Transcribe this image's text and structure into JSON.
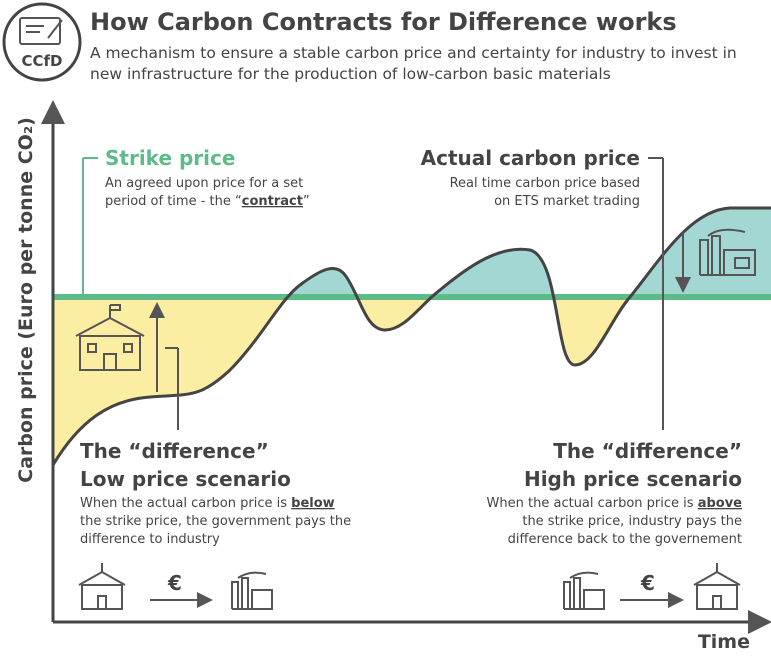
{
  "header": {
    "logo": "CCfD",
    "title": "How Carbon Contracts for Difference works",
    "subtitle_lines": [
      "A mechanism to ensure a stable carbon price and certainty for industry to invest in",
      "new infrastructure for the production of low-carbon basic materials"
    ]
  },
  "axes": {
    "y_label": "Carbon price (Euro per tonne CO₂)",
    "x_label": "Time"
  },
  "strike_price": {
    "title": "Strike price",
    "line1": "An agreed upon price for a set",
    "line2_before": "period of time - the “",
    "line2_emphasis": "contract",
    "line2_after": "”"
  },
  "actual_price": {
    "title": "Actual carbon price",
    "lines": [
      "Real time carbon price based",
      "on ETS market trading"
    ]
  },
  "low_scenario": {
    "heading1": "The “difference”",
    "heading2": "Low price scenario",
    "line1_before": "When the actual carbon price is ",
    "line1_emphasis": "below",
    "lines": [
      "the strike price, the government pays the",
      "difference to industry"
    ],
    "currency": "€"
  },
  "high_scenario": {
    "heading1": "The “difference”",
    "heading2": "High price scenario",
    "line1_before": "When the actual carbon price is ",
    "line1_emphasis": "above",
    "lines": [
      "the strike price, industry pays the",
      "difference back to the governement"
    ],
    "currency": "€"
  }
}
